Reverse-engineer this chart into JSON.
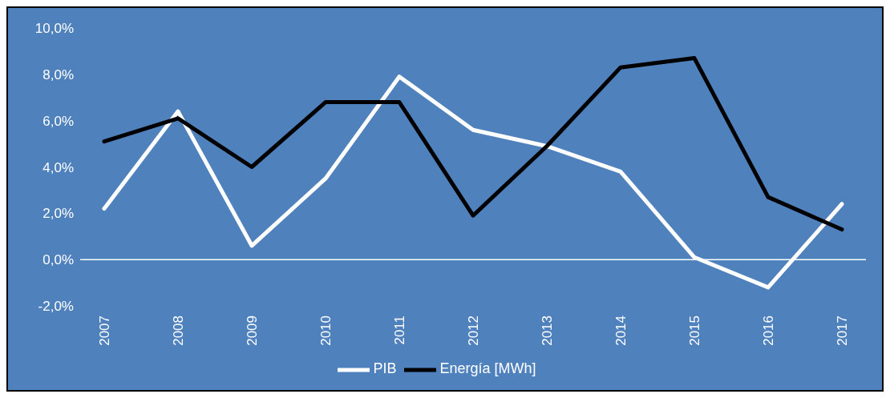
{
  "chart_data": {
    "type": "line",
    "categories": [
      "2007",
      "2008",
      "2009",
      "2010",
      "2011",
      "2012",
      "2013",
      "2014",
      "2015",
      "2016",
      "2017"
    ],
    "series": [
      {
        "name": "PIB",
        "color": "#ffffff",
        "values": [
          2.2,
          6.4,
          0.6,
          3.5,
          7.9,
          5.6,
          4.9,
          3.8,
          0.1,
          -1.2,
          2.4
        ]
      },
      {
        "name": "Energía [MWh]",
        "color": "#000000",
        "values": [
          5.1,
          6.1,
          4.0,
          6.8,
          6.8,
          1.9,
          4.9,
          8.3,
          8.7,
          2.7,
          1.3
        ]
      }
    ],
    "ylim": [
      -2,
      10
    ],
    "yticks": [
      {
        "value": -2,
        "label": "-2,0%"
      },
      {
        "value": 0,
        "label": "0,0%"
      },
      {
        "value": 2,
        "label": "2,0%"
      },
      {
        "value": 4,
        "label": "4,0%"
      },
      {
        "value": 6,
        "label": "6,0%"
      },
      {
        "value": 8,
        "label": "8,0%"
      },
      {
        "value": 10,
        "label": "10,0%"
      }
    ],
    "ref_lines": [
      {
        "axis": "y",
        "value": 0,
        "color": "#ffffff"
      }
    ],
    "legend": "bottom",
    "marker": "none",
    "line_style": "solid"
  }
}
